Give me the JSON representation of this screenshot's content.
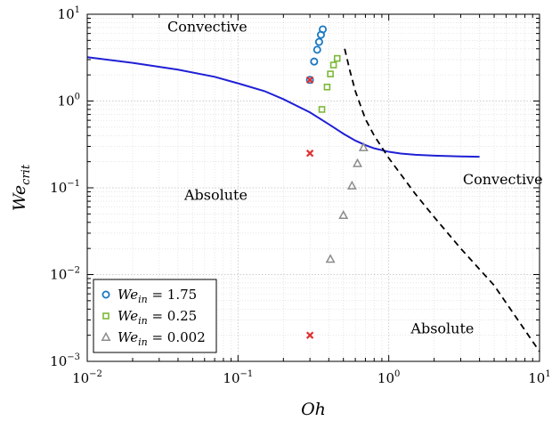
{
  "chart_data": {
    "type": "scatter",
    "xlabel": "Oh",
    "ylabel_main": "We",
    "ylabel_sub": "crit",
    "x_scale": "log",
    "y_scale": "log",
    "xlim": [
      0.01,
      10
    ],
    "ylim": [
      0.001,
      10
    ],
    "x_ticks": [
      {
        "value": 0.01,
        "base": "10",
        "exp": "−2"
      },
      {
        "value": 0.1,
        "base": "10",
        "exp": "−1"
      },
      {
        "value": 1,
        "base": "10",
        "exp": "0"
      },
      {
        "value": 10,
        "base": "10",
        "exp": "1"
      }
    ],
    "y_ticks": [
      {
        "value": 0.001,
        "base": "10",
        "exp": "−3"
      },
      {
        "value": 0.01,
        "base": "10",
        "exp": "−2"
      },
      {
        "value": 0.1,
        "base": "10",
        "exp": "−1"
      },
      {
        "value": 1,
        "base": "10",
        "exp": "0"
      },
      {
        "value": 10,
        "base": "10",
        "exp": "1"
      }
    ],
    "grid": true,
    "legend_position": "bottom-left",
    "lines": [
      {
        "style": "solid",
        "color": "#1f1fd6",
        "x": [
          0.01,
          0.02,
          0.04,
          0.07,
          0.1,
          0.15,
          0.2,
          0.3,
          0.4,
          0.5,
          0.6,
          0.7,
          0.8,
          1.0,
          1.2,
          1.5,
          2.0,
          3.0,
          4.0
        ],
        "y": [
          3.2,
          2.75,
          2.3,
          1.9,
          1.6,
          1.3,
          1.05,
          0.74,
          0.54,
          0.42,
          0.35,
          0.31,
          0.285,
          0.26,
          0.248,
          0.24,
          0.235,
          0.23,
          0.228
        ]
      },
      {
        "style": "dashed",
        "color": "#000000",
        "x": [
          0.51,
          0.55,
          0.6,
          0.7,
          0.8,
          1.0,
          1.5,
          2.0,
          3.0,
          5.0,
          10.0
        ],
        "y": [
          4.0,
          2.3,
          1.3,
          0.62,
          0.4,
          0.22,
          0.085,
          0.046,
          0.02,
          0.0075,
          0.0013
        ]
      }
    ],
    "series": [
      {
        "name_main": "We",
        "name_sub": "in",
        "name_value": " = 1.75",
        "marker": "circle",
        "color": "#1a78c2",
        "x": [
          0.3,
          0.32,
          0.335,
          0.345,
          0.355,
          0.365
        ],
        "y": [
          1.75,
          2.85,
          3.9,
          4.8,
          5.8,
          6.7
        ]
      },
      {
        "name_main": "We",
        "name_sub": "in",
        "name_value": " = 0.25",
        "marker": "square",
        "color": "#7db83a",
        "x": [
          0.36,
          0.39,
          0.41,
          0.43,
          0.455
        ],
        "y": [
          0.8,
          1.45,
          2.05,
          2.6,
          3.1
        ]
      },
      {
        "name_main": "We",
        "name_sub": "in",
        "name_value": " = 0.002",
        "marker": "triangle",
        "color": "#8c8c8c",
        "x": [
          0.41,
          0.5,
          0.57,
          0.62,
          0.68
        ],
        "y": [
          0.015,
          0.048,
          0.105,
          0.19,
          0.29
        ]
      }
    ],
    "crosses": {
      "color": "#e03030",
      "x": [
        0.3,
        0.3,
        0.3
      ],
      "y": [
        1.75,
        0.25,
        0.002
      ]
    },
    "annotations": [
      {
        "text": "Convective",
        "x": 0.034,
        "y": 6.3
      },
      {
        "text": "Absolute",
        "x": 0.044,
        "y": 0.073
      },
      {
        "text": "Convective",
        "x": 3.1,
        "y": 0.11
      },
      {
        "text": "Absolute",
        "x": 1.4,
        "y": 0.0021
      }
    ]
  }
}
